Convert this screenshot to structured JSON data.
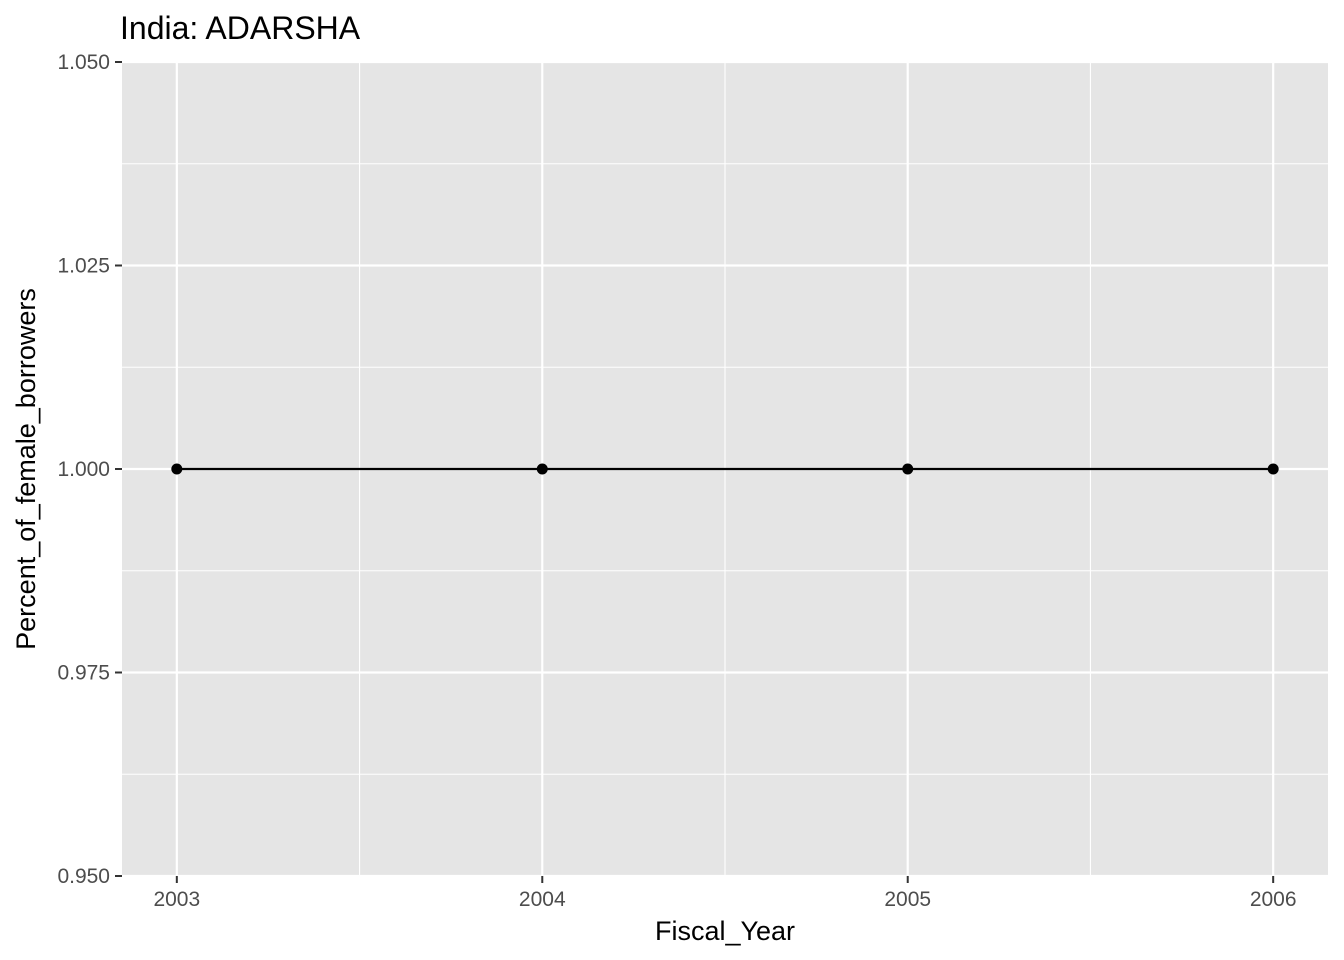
{
  "chart_data": {
    "type": "line",
    "title": "India:  ADARSHA",
    "xlabel": "Fiscal_Year",
    "ylabel": "Percent_of_female_borrowers",
    "x_ticks": [
      "2003",
      "2004",
      "2005",
      "2006"
    ],
    "y_ticks": [
      "0.950",
      "0.975",
      "1.000",
      "1.025",
      "1.050"
    ],
    "xlim": [
      2002.85,
      2006.15
    ],
    "ylim": [
      0.95,
      1.05
    ],
    "grid": true,
    "legend": "none",
    "series": [
      {
        "x": [
          2003,
          2004,
          2005,
          2006
        ],
        "values": [
          1.0,
          1.0,
          1.0,
          1.0
        ],
        "marker": "point"
      }
    ],
    "colors": {
      "panel_background": "#e5e5e5",
      "grid": "#ffffff",
      "line": "#000000",
      "tick_label": "#4d4d4d"
    }
  }
}
